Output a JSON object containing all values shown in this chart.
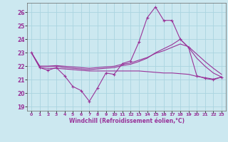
{
  "xlabel": "Windchill (Refroidissement éolien,°C)",
  "xlim": [
    -0.5,
    23.5
  ],
  "ylim": [
    18.7,
    26.7
  ],
  "yticks": [
    19,
    20,
    21,
    22,
    23,
    24,
    25,
    26
  ],
  "xticks": [
    0,
    1,
    2,
    3,
    4,
    5,
    6,
    7,
    8,
    9,
    10,
    11,
    12,
    13,
    14,
    15,
    16,
    17,
    18,
    19,
    20,
    21,
    22,
    23
  ],
  "background_color": "#cce8f0",
  "grid_color": "#aad4e0",
  "line_color": "#993399",
  "lines": [
    {
      "x": [
        0,
        1,
        2,
        3,
        4,
        5,
        6,
        7,
        8,
        9,
        10,
        11,
        12,
        13,
        14,
        15,
        16,
        17,
        18,
        19,
        20,
        21,
        22,
        23
      ],
      "y": [
        23.0,
        21.9,
        21.7,
        21.9,
        21.3,
        20.5,
        20.2,
        19.4,
        20.4,
        21.5,
        21.4,
        22.2,
        22.4,
        23.8,
        25.6,
        26.4,
        25.4,
        25.4,
        24.0,
        23.4,
        21.3,
        21.1,
        21.0,
        21.2
      ],
      "marker": "+"
    },
    {
      "x": [
        0,
        1,
        2,
        3,
        4,
        5,
        6,
        7,
        8,
        9,
        10,
        11,
        12,
        13,
        14,
        15,
        16,
        17,
        18,
        19,
        20,
        21,
        22,
        23
      ],
      "y": [
        23.0,
        22.0,
        22.0,
        22.0,
        21.9,
        21.85,
        21.8,
        21.75,
        21.8,
        21.85,
        21.9,
        22.05,
        22.15,
        22.35,
        22.6,
        23.0,
        23.3,
        23.6,
        24.0,
        23.4,
        22.6,
        22.0,
        21.5,
        21.2
      ],
      "marker": null
    },
    {
      "x": [
        0,
        1,
        2,
        3,
        4,
        5,
        6,
        7,
        8,
        9,
        10,
        11,
        12,
        13,
        14,
        15,
        16,
        17,
        18,
        19,
        20,
        21,
        22,
        23
      ],
      "y": [
        23.0,
        22.0,
        22.0,
        22.05,
        22.0,
        21.95,
        21.9,
        21.85,
        21.9,
        21.95,
        22.0,
        22.15,
        22.25,
        22.45,
        22.65,
        22.95,
        23.15,
        23.4,
        23.65,
        23.45,
        22.9,
        22.35,
        21.85,
        21.4
      ],
      "marker": null
    },
    {
      "x": [
        0,
        1,
        2,
        3,
        4,
        5,
        6,
        7,
        8,
        9,
        10,
        11,
        12,
        13,
        14,
        15,
        16,
        17,
        18,
        19,
        20,
        21,
        22,
        23
      ],
      "y": [
        23.0,
        21.9,
        21.85,
        21.85,
        21.8,
        21.75,
        21.7,
        21.65,
        21.65,
        21.65,
        21.65,
        21.65,
        21.65,
        21.65,
        21.6,
        21.55,
        21.5,
        21.5,
        21.45,
        21.4,
        21.25,
        21.15,
        21.05,
        21.2
      ],
      "marker": null
    }
  ]
}
